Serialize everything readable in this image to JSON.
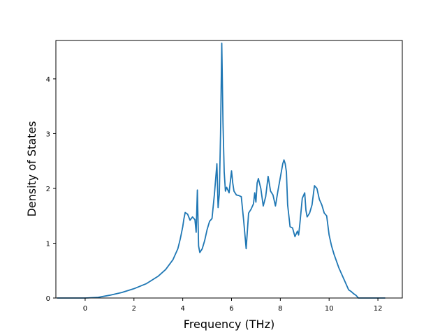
{
  "chart_data": {
    "type": "line",
    "title": "",
    "xlabel": "Frequency (THz)",
    "ylabel": "Density of States",
    "xlim": [
      -1.2,
      13.0
    ],
    "ylim": [
      0,
      4.7
    ],
    "xticks": [
      0,
      2,
      4,
      6,
      8,
      10,
      12
    ],
    "yticks": [
      0,
      1,
      2,
      3,
      4
    ],
    "grid": false,
    "legend": "none",
    "line_color": "#1f77b4",
    "series": [
      {
        "x": [
          -1.15,
          -0.5,
          0,
          0.5,
          1.0,
          1.5,
          2.0,
          2.5,
          3.0,
          3.3,
          3.6,
          3.8,
          3.9,
          4.0,
          4.05,
          4.1,
          4.2,
          4.3,
          4.4,
          4.5,
          4.55,
          4.6,
          4.65,
          4.7,
          4.8,
          4.9,
          5.0,
          5.1,
          5.2,
          5.3,
          5.4,
          5.45,
          5.5,
          5.55,
          5.6,
          5.65,
          5.7,
          5.75,
          5.8,
          5.9,
          6.0,
          6.05,
          6.1,
          6.2,
          6.3,
          6.4,
          6.5,
          6.6,
          6.7,
          6.8,
          6.9,
          6.95,
          7.0,
          7.05,
          7.1,
          7.2,
          7.3,
          7.4,
          7.5,
          7.6,
          7.7,
          7.8,
          7.9,
          8.0,
          8.1,
          8.15,
          8.2,
          8.25,
          8.3,
          8.4,
          8.5,
          8.6,
          8.7,
          8.75,
          8.8,
          8.9,
          9.0,
          9.05,
          9.1,
          9.2,
          9.3,
          9.4,
          9.5,
          9.6,
          9.7,
          9.8,
          9.9,
          10.0,
          10.1,
          10.2,
          10.4,
          10.6,
          10.8,
          10.9,
          11.0,
          11.1,
          11.2,
          11.5,
          12.0,
          12.3
        ],
        "y": [
          0,
          0,
          0,
          0.01,
          0.05,
          0.1,
          0.17,
          0.26,
          0.4,
          0.52,
          0.7,
          0.9,
          1.08,
          1.3,
          1.45,
          1.56,
          1.53,
          1.42,
          1.48,
          1.43,
          1.2,
          1.97,
          0.95,
          0.83,
          0.9,
          1.05,
          1.25,
          1.4,
          1.45,
          1.9,
          2.45,
          1.65,
          1.9,
          3.0,
          4.65,
          3.2,
          2.3,
          1.95,
          2.02,
          1.92,
          2.32,
          2.1,
          1.95,
          1.88,
          1.87,
          1.85,
          1.4,
          0.9,
          1.55,
          1.62,
          1.72,
          1.92,
          1.75,
          2.1,
          2.18,
          2.0,
          1.68,
          1.85,
          2.22,
          1.95,
          1.88,
          1.68,
          1.95,
          2.2,
          2.45,
          2.52,
          2.45,
          2.3,
          1.7,
          1.3,
          1.28,
          1.12,
          1.22,
          1.15,
          1.35,
          1.82,
          1.92,
          1.6,
          1.48,
          1.55,
          1.7,
          2.05,
          2.0,
          1.8,
          1.7,
          1.55,
          1.5,
          1.15,
          0.95,
          0.8,
          0.55,
          0.35,
          0.15,
          0.12,
          0.08,
          0.05,
          0,
          0,
          0,
          0
        ]
      }
    ]
  }
}
